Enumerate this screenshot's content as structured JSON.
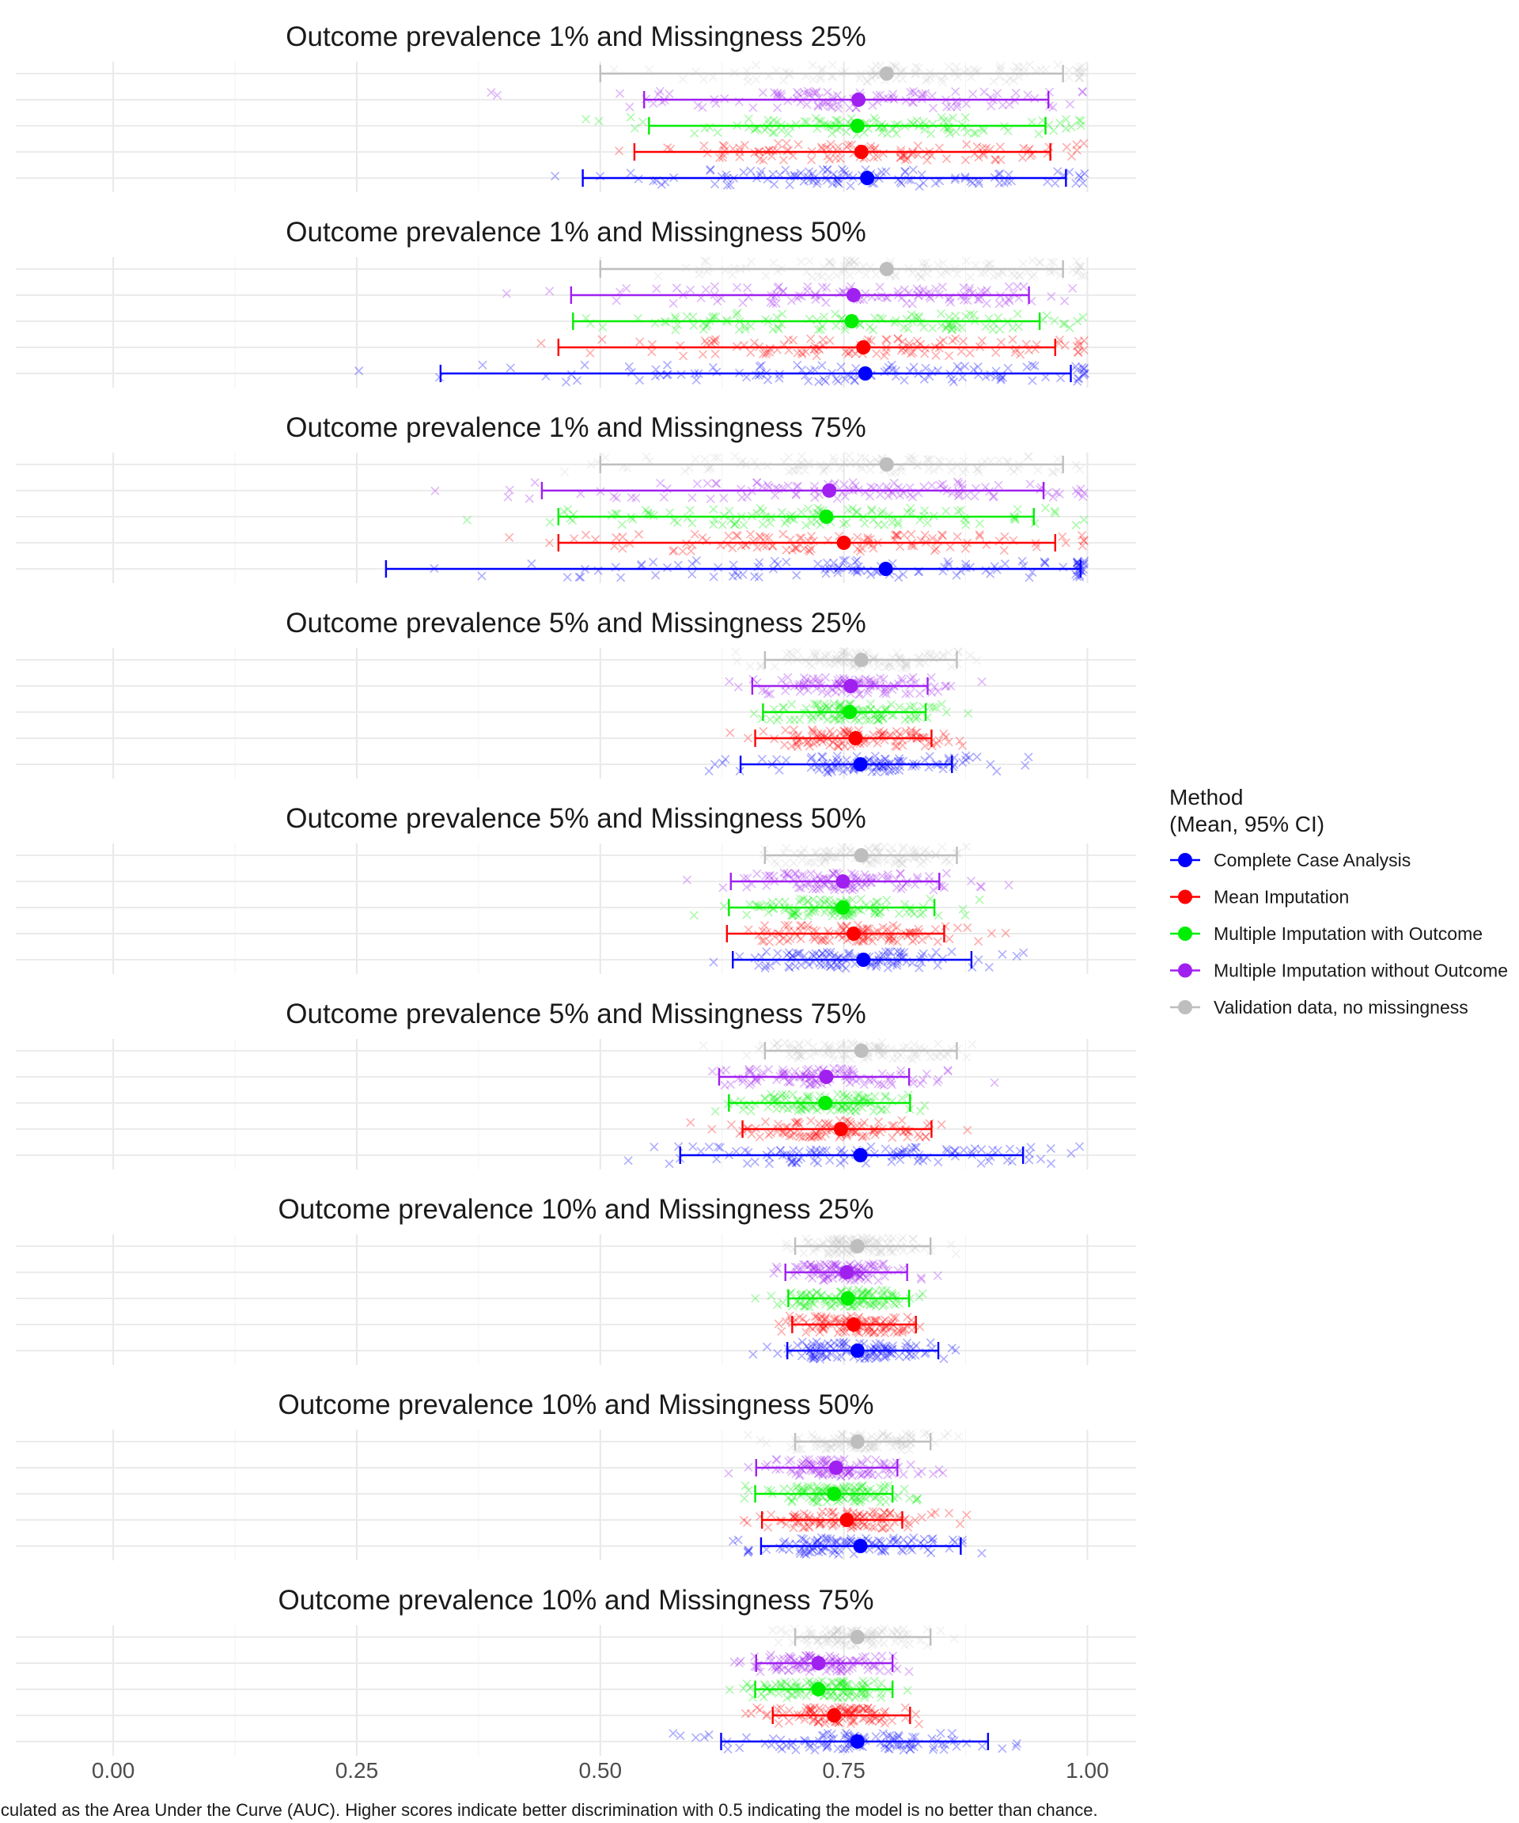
{
  "chart_data": {
    "type": "dot-and-interval",
    "caption": "lculated as the Area Under the Curve (AUC). Higher scores indicate better discrimination with 0.5 indicating the model is no better than chance.",
    "xlim": [
      -0.1,
      1.05
    ],
    "x_ticks": [
      {
        "value": 0.0,
        "label": "0.00"
      },
      {
        "value": 0.25,
        "label": "0.25"
      },
      {
        "value": 0.5,
        "label": "0.50"
      },
      {
        "value": 0.75,
        "label": "0.75"
      },
      {
        "value": 1.0,
        "label": "1.00"
      }
    ],
    "grid": true,
    "legend": {
      "position": "right",
      "title_line1": "Method",
      "title_line2": "(Mean, 95% CI)"
    },
    "series": [
      {
        "name": "Complete Case Analysis",
        "color": "#0000ff"
      },
      {
        "name": "Mean Imputation",
        "color": "#ff0000"
      },
      {
        "name": "Multiple Imputation with Outcome",
        "color": "#00ee00"
      },
      {
        "name": "Multiple Imputation without Outcome",
        "color": "#a020f0"
      },
      {
        "name": "Validation data, no missingness",
        "color": "#bebebe"
      }
    ],
    "panels": [
      {
        "title": "Outcome prevalence 1% and Missingness 25%",
        "stats": [
          [
            0.774,
            0.482,
            0.978
          ],
          [
            0.768,
            0.535,
            0.962
          ],
          [
            0.764,
            0.55,
            0.957
          ],
          [
            0.765,
            0.545,
            0.96
          ],
          [
            0.794,
            0.5,
            0.975
          ]
        ]
      },
      {
        "title": "Outcome prevalence 1% and Missingness 50%",
        "stats": [
          [
            0.772,
            0.336,
            0.983
          ],
          [
            0.77,
            0.457,
            0.967
          ],
          [
            0.758,
            0.472,
            0.951
          ],
          [
            0.76,
            0.47,
            0.94
          ],
          [
            0.794,
            0.5,
            0.975
          ]
        ]
      },
      {
        "title": "Outcome prevalence 1% and Missingness 75%",
        "stats": [
          [
            0.793,
            0.28,
            0.993
          ],
          [
            0.75,
            0.457,
            0.967
          ],
          [
            0.732,
            0.457,
            0.945
          ],
          [
            0.735,
            0.44,
            0.955
          ],
          [
            0.794,
            0.5,
            0.975
          ]
        ]
      },
      {
        "title": "Outcome prevalence 5% and Missingness 25%",
        "stats": [
          [
            0.767,
            0.644,
            0.861
          ],
          [
            0.762,
            0.659,
            0.84
          ],
          [
            0.756,
            0.667,
            0.834
          ],
          [
            0.757,
            0.656,
            0.836
          ],
          [
            0.768,
            0.669,
            0.866
          ]
        ]
      },
      {
        "title": "Outcome prevalence 5% and Missingness 50%",
        "stats": [
          [
            0.77,
            0.636,
            0.881
          ],
          [
            0.76,
            0.63,
            0.853
          ],
          [
            0.749,
            0.632,
            0.843
          ],
          [
            0.749,
            0.634,
            0.848
          ],
          [
            0.768,
            0.669,
            0.866
          ]
        ]
      },
      {
        "title": "Outcome prevalence 5% and Missingness 75%",
        "stats": [
          [
            0.767,
            0.582,
            0.934
          ],
          [
            0.747,
            0.646,
            0.84
          ],
          [
            0.731,
            0.632,
            0.818
          ],
          [
            0.732,
            0.622,
            0.817
          ],
          [
            0.768,
            0.669,
            0.866
          ]
        ]
      },
      {
        "title": "Outcome prevalence 10% and Missingness 25%",
        "stats": [
          [
            0.764,
            0.692,
            0.847
          ],
          [
            0.76,
            0.697,
            0.824
          ],
          [
            0.754,
            0.693,
            0.817
          ],
          [
            0.753,
            0.69,
            0.815
          ],
          [
            0.764,
            0.7,
            0.839
          ]
        ]
      },
      {
        "title": "Outcome prevalence 10% and Missingness 50%",
        "stats": [
          [
            0.767,
            0.665,
            0.87
          ],
          [
            0.753,
            0.666,
            0.81
          ],
          [
            0.74,
            0.659,
            0.8
          ],
          [
            0.742,
            0.66,
            0.805
          ],
          [
            0.764,
            0.7,
            0.839
          ]
        ]
      },
      {
        "title": "Outcome prevalence 10% and Missingness 75%",
        "stats": [
          [
            0.764,
            0.624,
            0.898
          ],
          [
            0.74,
            0.677,
            0.818
          ],
          [
            0.724,
            0.659,
            0.8
          ],
          [
            0.724,
            0.66,
            0.8
          ],
          [
            0.764,
            0.7,
            0.839
          ]
        ]
      }
    ]
  }
}
